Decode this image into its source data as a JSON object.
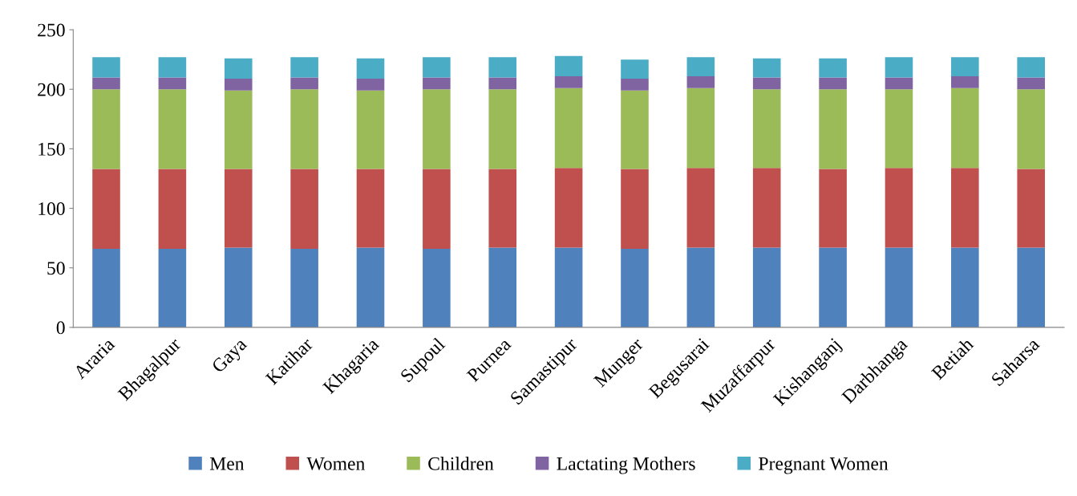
{
  "chart_data": {
    "type": "bar",
    "stacked": true,
    "categories": [
      "Araria",
      "Bhagalpur",
      "Gaya",
      "Katihar",
      "Khagaria",
      "Supoul",
      "Purnea",
      "Samastipur",
      "Munger",
      "Begusarai",
      "Muzaffarpur",
      "Kishanganj",
      "Darbhanga",
      "Betiah",
      "Saharsa"
    ],
    "series": [
      {
        "name": "Men",
        "color": "#4f81bd",
        "values": [
          66,
          66,
          67,
          66,
          67,
          66,
          67,
          67,
          66,
          67,
          67,
          67,
          67,
          67,
          67
        ]
      },
      {
        "name": "Women",
        "color": "#c0504d",
        "values": [
          67,
          67,
          66,
          67,
          66,
          67,
          66,
          67,
          67,
          67,
          67,
          66,
          67,
          67,
          66
        ]
      },
      {
        "name": "Children",
        "color": "#9bbb59",
        "values": [
          67,
          67,
          66,
          67,
          66,
          67,
          67,
          67,
          66,
          67,
          66,
          67,
          66,
          67,
          67
        ]
      },
      {
        "name": "Lactating Mothers",
        "color": "#8064a2",
        "values": [
          10,
          10,
          10,
          10,
          10,
          10,
          10,
          10,
          10,
          10,
          10,
          10,
          10,
          10,
          10
        ]
      },
      {
        "name": "Pregnant Women",
        "color": "#4bacc6",
        "values": [
          17,
          17,
          17,
          17,
          17,
          17,
          17,
          17,
          16,
          16,
          16,
          16,
          17,
          16,
          17
        ]
      }
    ],
    "ylim": [
      0,
      250
    ],
    "yticks": [
      0,
      50,
      100,
      150,
      200,
      250
    ],
    "grid": false,
    "legend": "bottom"
  }
}
